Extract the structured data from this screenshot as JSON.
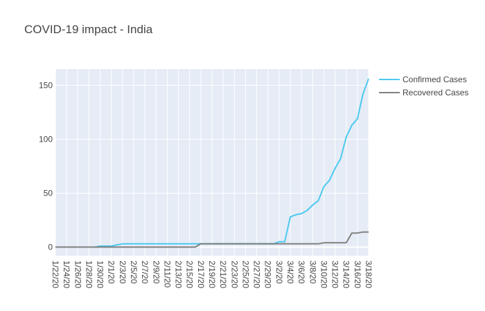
{
  "chart_data": {
    "type": "line",
    "title": "COVID-19 impact - India",
    "xlabel": "",
    "ylabel": "",
    "x": [
      "1/22/20",
      "1/23/20",
      "1/24/20",
      "1/25/20",
      "1/26/20",
      "1/27/20",
      "1/28/20",
      "1/29/20",
      "1/30/20",
      "1/31/20",
      "2/1/20",
      "2/2/20",
      "2/3/20",
      "2/4/20",
      "2/5/20",
      "2/6/20",
      "2/7/20",
      "2/8/20",
      "2/9/20",
      "2/10/20",
      "2/11/20",
      "2/12/20",
      "2/13/20",
      "2/14/20",
      "2/15/20",
      "2/16/20",
      "2/17/20",
      "2/18/20",
      "2/19/20",
      "2/20/20",
      "2/21/20",
      "2/22/20",
      "2/23/20",
      "2/24/20",
      "2/25/20",
      "2/26/20",
      "2/27/20",
      "2/28/20",
      "2/29/20",
      "3/1/20",
      "3/2/20",
      "3/3/20",
      "3/4/20",
      "3/5/20",
      "3/6/20",
      "3/7/20",
      "3/8/20",
      "3/9/20",
      "3/10/20",
      "3/11/20",
      "3/12/20",
      "3/13/20",
      "3/14/20",
      "3/15/20",
      "3/16/20",
      "3/17/20",
      "3/18/20"
    ],
    "x_tick_labels": [
      "1/22/20",
      "1/24/20",
      "1/26/20",
      "1/28/20",
      "1/30/20",
      "2/1/20",
      "2/3/20",
      "2/5/20",
      "2/7/20",
      "2/9/20",
      "2/11/20",
      "2/13/20",
      "2/15/20",
      "2/17/20",
      "2/19/20",
      "2/21/20",
      "2/23/20",
      "2/25/20",
      "2/27/20",
      "2/29/20",
      "3/2/20",
      "3/4/20",
      "3/6/20",
      "3/8/20",
      "3/10/20",
      "3/12/20",
      "3/14/20",
      "3/16/20",
      "3/18/20"
    ],
    "y_ticks": [
      0,
      50,
      100,
      150
    ],
    "ylim": [
      -8,
      165
    ],
    "legend_position": "top-right",
    "series": [
      {
        "name": "Confirmed Cases",
        "color": "#4cc9f0",
        "values": [
          0,
          0,
          0,
          0,
          0,
          0,
          0,
          0,
          1,
          1,
          1,
          2,
          3,
          3,
          3,
          3,
          3,
          3,
          3,
          3,
          3,
          3,
          3,
          3,
          3,
          3,
          3,
          3,
          3,
          3,
          3,
          3,
          3,
          3,
          3,
          3,
          3,
          3,
          3,
          3,
          5,
          5,
          28,
          30,
          31,
          34,
          39,
          43,
          56,
          62,
          73,
          82,
          102,
          113,
          119,
          142,
          156
        ]
      },
      {
        "name": "Recovered Cases",
        "color": "#808080",
        "values": [
          0,
          0,
          0,
          0,
          0,
          0,
          0,
          0,
          0,
          0,
          0,
          0,
          0,
          0,
          0,
          0,
          0,
          0,
          0,
          0,
          0,
          0,
          0,
          0,
          0,
          0,
          3,
          3,
          3,
          3,
          3,
          3,
          3,
          3,
          3,
          3,
          3,
          3,
          3,
          3,
          3,
          3,
          3,
          3,
          3,
          3,
          3,
          3,
          4,
          4,
          4,
          4,
          4,
          13,
          13,
          14,
          14
        ]
      }
    ]
  }
}
